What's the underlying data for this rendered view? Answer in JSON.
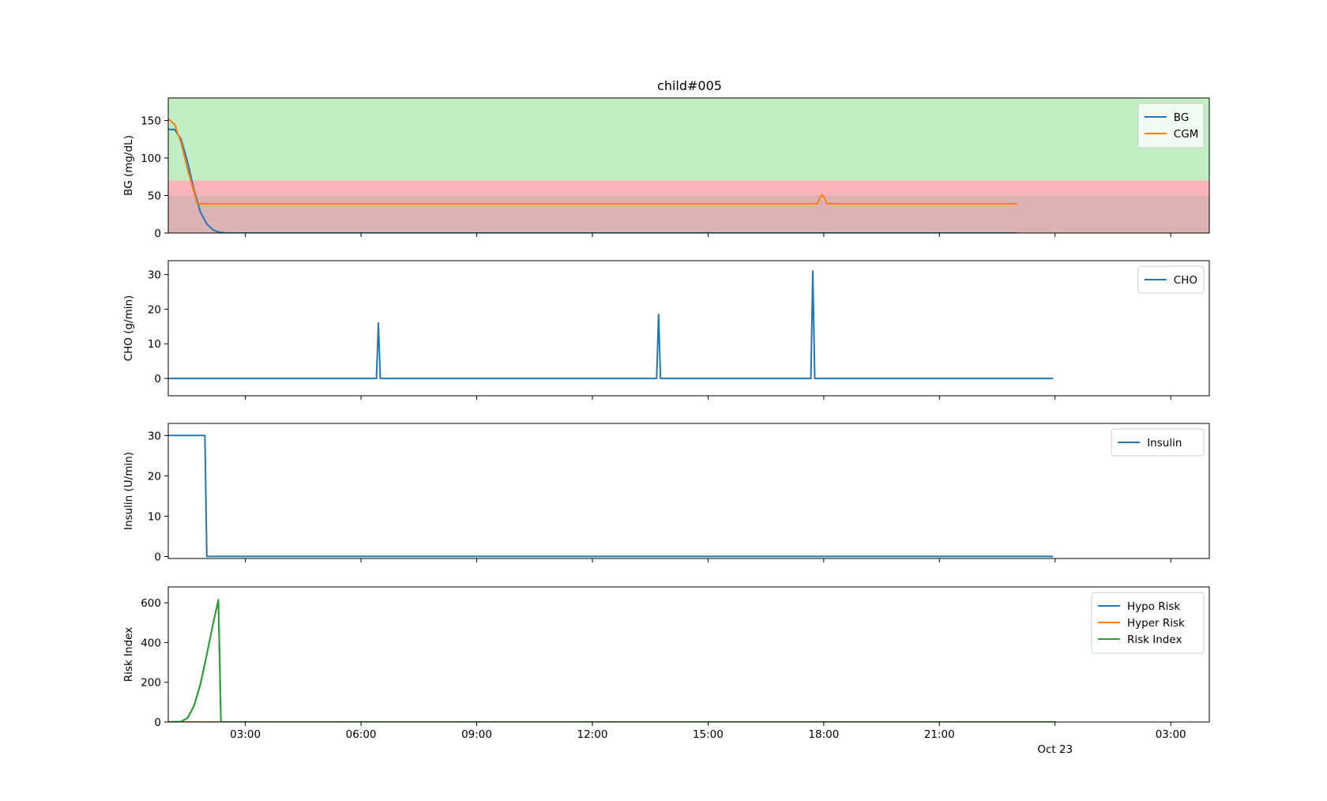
{
  "figure": {
    "title": "child#005",
    "x_tick_labels": [
      "03:00",
      "06:00",
      "09:00",
      "12:00",
      "15:00",
      "18:00",
      "21:00",
      "03:00"
    ],
    "x_secondary_label": "Oct 23"
  },
  "colors": {
    "blue": "#1f77b4",
    "orange": "#ff7f0e",
    "green": "#2ca02c",
    "safe_band": "#c1efc3",
    "low_band": "#fbb4b7",
    "severe_band": "#dcb2b5"
  },
  "chart_data": [
    {
      "type": "line",
      "ylabel": "BG (mg/dL)",
      "xlabel": "",
      "xlim": [
        "2023-10-22T01:00",
        "2023-10-23T04:00"
      ],
      "x_ticks": [
        "2023-10-22T03:00",
        "2023-10-22T06:00",
        "2023-10-22T09:00",
        "2023-10-22T12:00",
        "2023-10-22T15:00",
        "2023-10-22T18:00",
        "2023-10-22T21:00",
        "2023-10-23T00:00",
        "2023-10-23T03:00"
      ],
      "ylim": [
        0,
        180
      ],
      "y_ticks": [
        0,
        50,
        100,
        150
      ],
      "legend": "top-right",
      "bands": [
        {
          "y0": 70,
          "y1": 180,
          "color": "safe_band"
        },
        {
          "y0": 50,
          "y1": 70,
          "color": "low_band"
        },
        {
          "y0": 0,
          "y1": 50,
          "color": "severe_band"
        }
      ],
      "series": [
        {
          "name": "BG",
          "color": "blue",
          "points": [
            [
              "2023-10-22T01:00",
              138
            ],
            [
              "2023-10-22T01:10",
              138
            ],
            [
              "2023-10-22T01:20",
              125
            ],
            [
              "2023-10-22T01:30",
              95
            ],
            [
              "2023-10-22T01:40",
              58
            ],
            [
              "2023-10-22T01:50",
              28
            ],
            [
              "2023-10-22T02:00",
              12
            ],
            [
              "2023-10-22T02:10",
              4
            ],
            [
              "2023-10-22T02:20",
              1
            ],
            [
              "2023-10-22T02:30",
              0
            ],
            [
              "2023-10-22T04:00",
              0
            ],
            [
              "2023-10-22T23:00",
              0
            ]
          ]
        },
        {
          "name": "CGM",
          "color": "orange",
          "points": [
            [
              "2023-10-22T01:00",
              152
            ],
            [
              "2023-10-22T01:10",
              145
            ],
            [
              "2023-10-22T01:20",
              120
            ],
            [
              "2023-10-22T01:30",
              85
            ],
            [
              "2023-10-22T01:40",
              55
            ],
            [
              "2023-10-22T01:45",
              39
            ],
            [
              "2023-10-22T17:50",
              39
            ],
            [
              "2023-10-22T17:53",
              46
            ],
            [
              "2023-10-22T17:57",
              51
            ],
            [
              "2023-10-22T18:01",
              47
            ],
            [
              "2023-10-22T18:05",
              39
            ],
            [
              "2023-10-22T23:00",
              39
            ]
          ]
        }
      ]
    },
    {
      "type": "line",
      "ylabel": "CHO (g/min)",
      "xlabel": "",
      "xlim": [
        "2023-10-22T01:00",
        "2023-10-23T04:00"
      ],
      "x_ticks": [
        "2023-10-22T03:00",
        "2023-10-22T06:00",
        "2023-10-22T09:00",
        "2023-10-22T12:00",
        "2023-10-22T15:00",
        "2023-10-22T18:00",
        "2023-10-22T21:00",
        "2023-10-23T00:00",
        "2023-10-23T03:00"
      ],
      "ylim": [
        -5,
        34
      ],
      "y_ticks": [
        0,
        10,
        20,
        30
      ],
      "legend": "top-right",
      "series": [
        {
          "name": "CHO",
          "color": "blue",
          "points": [
            [
              "2023-10-22T01:00",
              0
            ],
            [
              "2023-10-22T06:24",
              0
            ],
            [
              "2023-10-22T06:27",
              16
            ],
            [
              "2023-10-22T06:30",
              0
            ],
            [
              "2023-10-22T13:40",
              0
            ],
            [
              "2023-10-22T13:43",
              18.5
            ],
            [
              "2023-10-22T13:46",
              0
            ],
            [
              "2023-10-22T17:40",
              0
            ],
            [
              "2023-10-22T17:43",
              31
            ],
            [
              "2023-10-22T17:46",
              0
            ],
            [
              "2023-10-22T23:57",
              0
            ]
          ]
        }
      ]
    },
    {
      "type": "line",
      "ylabel": "Insulin (U/min)",
      "xlabel": "",
      "xlim": [
        "2023-10-22T01:00",
        "2023-10-23T04:00"
      ],
      "x_ticks": [
        "2023-10-22T03:00",
        "2023-10-22T06:00",
        "2023-10-22T09:00",
        "2023-10-22T12:00",
        "2023-10-22T15:00",
        "2023-10-22T18:00",
        "2023-10-22T21:00",
        "2023-10-23T00:00",
        "2023-10-23T03:00"
      ],
      "ylim": [
        -0.5,
        33
      ],
      "y_ticks": [
        0,
        10,
        20,
        30
      ],
      "legend": "top-right",
      "series": [
        {
          "name": "Insulin",
          "color": "blue",
          "points": [
            [
              "2023-10-22T01:00",
              30
            ],
            [
              "2023-10-22T01:57",
              30
            ],
            [
              "2023-10-22T02:00",
              0
            ],
            [
              "2023-10-22T23:57",
              0
            ]
          ]
        }
      ]
    },
    {
      "type": "line",
      "ylabel": "Risk Index",
      "xlabel": "",
      "xlim": [
        "2023-10-22T01:00",
        "2023-10-23T04:00"
      ],
      "x_ticks": [
        "2023-10-22T03:00",
        "2023-10-22T06:00",
        "2023-10-22T09:00",
        "2023-10-22T12:00",
        "2023-10-22T15:00",
        "2023-10-22T18:00",
        "2023-10-22T21:00",
        "2023-10-23T00:00",
        "2023-10-23T03:00"
      ],
      "ylim": [
        0,
        680
      ],
      "y_ticks": [
        0,
        200,
        400,
        600
      ],
      "legend": "top-right",
      "series": [
        {
          "name": "Hypo Risk",
          "color": "blue",
          "points": [
            [
              "2023-10-22T01:00",
              0
            ],
            [
              "2023-10-22T01:20",
              2
            ],
            [
              "2023-10-22T01:30",
              20
            ],
            [
              "2023-10-22T01:40",
              80
            ],
            [
              "2023-10-22T01:50",
              190
            ],
            [
              "2023-10-22T02:00",
              340
            ],
            [
              "2023-10-22T02:10",
              500
            ],
            [
              "2023-10-22T02:18",
              615
            ],
            [
              "2023-10-22T02:22",
              0
            ],
            [
              "2023-10-23T00:00",
              0
            ]
          ]
        },
        {
          "name": "Hyper Risk",
          "color": "orange",
          "points": [
            [
              "2023-10-22T01:00",
              0
            ],
            [
              "2023-10-23T00:00",
              0
            ]
          ]
        },
        {
          "name": "Risk Index",
          "color": "green",
          "points": [
            [
              "2023-10-22T01:00",
              0
            ],
            [
              "2023-10-22T01:20",
              2
            ],
            [
              "2023-10-22T01:30",
              20
            ],
            [
              "2023-10-22T01:40",
              80
            ],
            [
              "2023-10-22T01:50",
              190
            ],
            [
              "2023-10-22T02:00",
              340
            ],
            [
              "2023-10-22T02:10",
              500
            ],
            [
              "2023-10-22T02:18",
              615
            ],
            [
              "2023-10-22T02:22",
              0
            ],
            [
              "2023-10-23T00:00",
              0
            ]
          ]
        }
      ]
    }
  ]
}
